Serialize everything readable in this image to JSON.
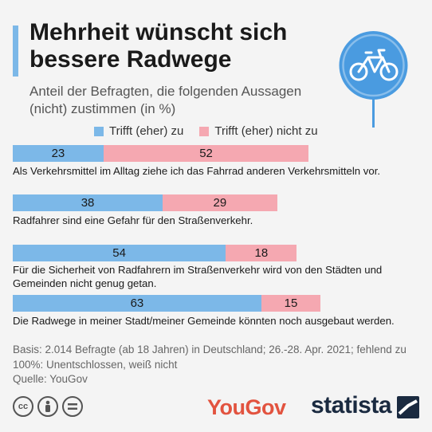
{
  "title": "Mehrheit wünscht sich bessere Radwege",
  "subtitle": "Anteil der Befragten, die folgenden Aussagen (nicht) zustimmen (in %)",
  "colors": {
    "agree": "#7cb8e8",
    "disagree": "#f5a8b1",
    "accent": "#7cb8e8",
    "sign_fill": "#4a9be0"
  },
  "chart_data": {
    "type": "bar",
    "orientation": "horizontal",
    "stacked": true,
    "series": [
      {
        "name": "Trifft (eher) zu",
        "values": [
          23,
          38,
          54,
          63
        ]
      },
      {
        "name": "Trifft (eher) nicht zu",
        "values": [
          52,
          29,
          18,
          15
        ]
      }
    ],
    "categories": [
      "Als Verkehrsmittel im Alltag ziehe ich das Fahrrad anderen Verkehrsmitteln vor.",
      "Radfahrer sind eine Gefahr für den Straßenverkehr.",
      "Für die Sicherheit von Radfahrern im Straßenverkehr wird von den Städten und Gemeinden nicht genug getan.",
      "Die Radwege in meiner Stadt/meiner Gemeinde könnten noch ausgebaut werden."
    ],
    "xlim": [
      0,
      100
    ],
    "legend_position": "top"
  },
  "footer": {
    "basis": "Basis: 2.014 Befragte (ab 18 Jahren) in Deutschland; 26.-28. Apr. 2021; fehlend zu 100%: Unentschlossen, weiß nicht",
    "source": "Quelle: YouGov"
  },
  "icons": [
    "cc-icon",
    "attribution-icon",
    "no-derivatives-icon",
    "bicycle-sign-icon"
  ],
  "logos": {
    "yougov": "YouGov",
    "statista": "statista"
  }
}
